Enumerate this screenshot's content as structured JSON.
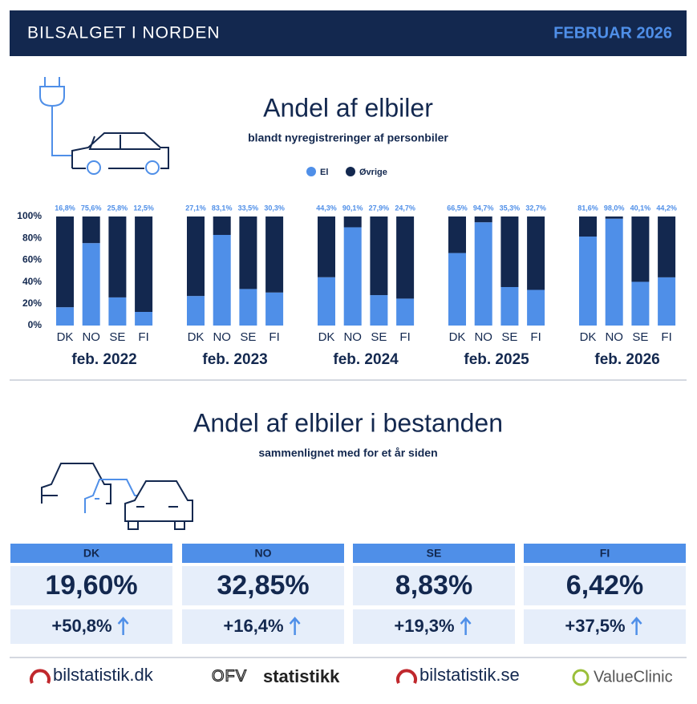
{
  "header": {
    "title": "BILSALGET I NORDEN",
    "period": "FEBRUAR 2026"
  },
  "chart_data": {
    "type": "bar",
    "stacked": true,
    "title": "Andel af elbiler",
    "subtitle": "blandt nyregistreringer af personbiler",
    "groups": [
      "feb. 2022",
      "feb. 2023",
      "feb. 2024",
      "feb. 2025",
      "feb. 2026"
    ],
    "categories": [
      "DK",
      "NO",
      "SE",
      "FI",
      "DK",
      "NO",
      "SE",
      "FI",
      "DK",
      "NO",
      "SE",
      "FI",
      "DK",
      "NO",
      "SE",
      "FI",
      "DK",
      "NO",
      "SE",
      "FI"
    ],
    "series": [
      {
        "name": "El",
        "color": "#4f8fe8",
        "values": [
          16.8,
          75.6,
          25.8,
          12.5,
          27.1,
          83.1,
          33.5,
          30.3,
          44.3,
          90.1,
          27.9,
          24.7,
          66.5,
          94.7,
          35.3,
          32.7,
          81.6,
          98.0,
          40.1,
          44.2
        ],
        "value_labels": [
          "16,8%",
          "75,6%",
          "25,8%",
          "12,5%",
          "27,1%",
          "83,1%",
          "33,5%",
          "30,3%",
          "44,3%",
          "90,1%",
          "27,9%",
          "24,7%",
          "66,5%",
          "94,7%",
          "35,3%",
          "32,7%",
          "81,6%",
          "98,0%",
          "40,1%",
          "44,2%"
        ]
      },
      {
        "name": "Øvrige",
        "color": "#13284f",
        "values": [
          83.2,
          24.4,
          74.2,
          87.5,
          72.9,
          16.9,
          66.5,
          69.7,
          55.7,
          9.9,
          72.1,
          75.3,
          33.5,
          5.3,
          64.7,
          67.3,
          18.4,
          2.0,
          59.9,
          55.8
        ]
      }
    ],
    "ylim": [
      0,
      100
    ],
    "yticks": [
      {
        "value": 0,
        "label": "0%"
      },
      {
        "value": 20,
        "label": "20%"
      },
      {
        "value": 40,
        "label": "40%"
      },
      {
        "value": 60,
        "label": "60%"
      },
      {
        "value": 80,
        "label": "80%"
      },
      {
        "value": 100,
        "label": "100%"
      }
    ],
    "grid": false
  },
  "stock": {
    "title": "Andel af elbiler i bestanden",
    "subtitle": "sammenlignet med for et år siden",
    "cards": [
      {
        "country": "DK",
        "share": "19,60%",
        "change": "+50,8%"
      },
      {
        "country": "NO",
        "share": "32,85%",
        "change": "+16,4%"
      },
      {
        "country": "SE",
        "share": "8,83%",
        "change": "+19,3%"
      },
      {
        "country": "FI",
        "share": "6,42%",
        "change": "+37,5%"
      }
    ]
  },
  "footer": {
    "logos": [
      "bilstatistik.dk",
      "OFV",
      "statistikk",
      "bilstatistik.se",
      "ValueClinic"
    ]
  }
}
